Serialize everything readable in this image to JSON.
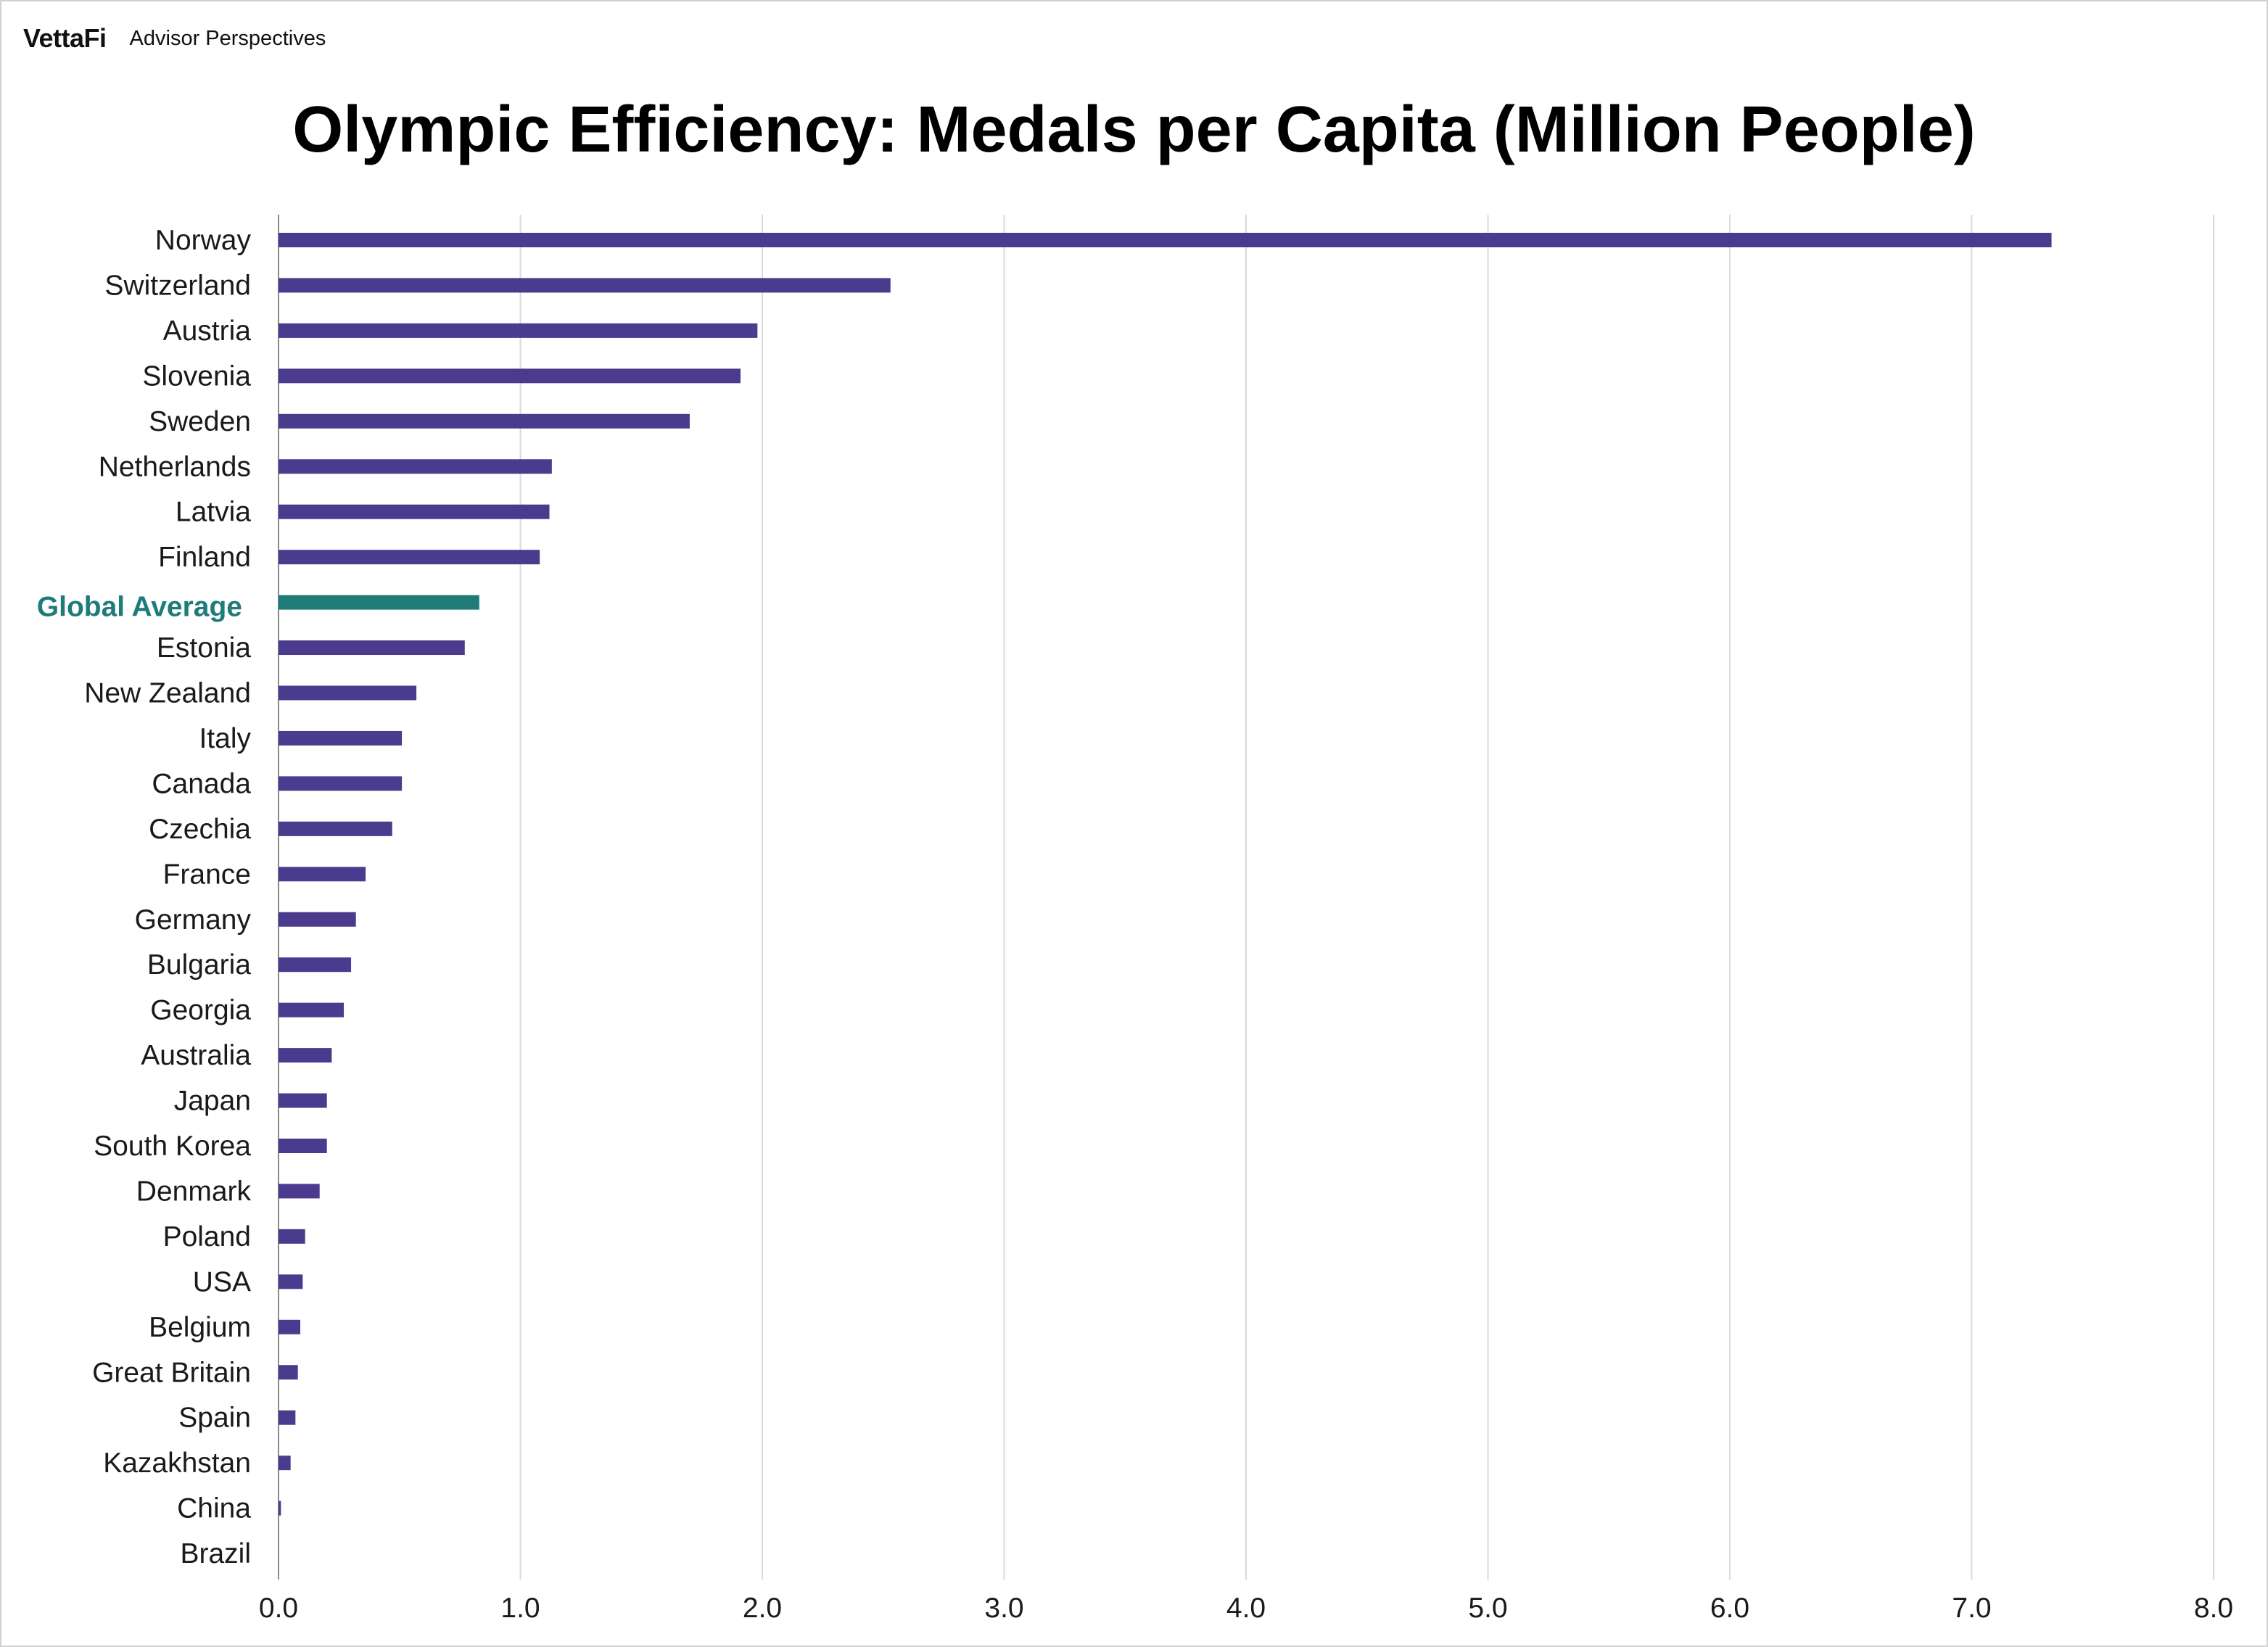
{
  "brand": {
    "logo": "VettaFi",
    "subtitle": "Advisor Perspectives"
  },
  "colors": {
    "bar": "#4b3b8f",
    "highlight": "#1e7b78",
    "grid": "#d9d9d9",
    "axis": "#8a8a8a"
  },
  "chart_data": {
    "type": "bar",
    "orientation": "horizontal",
    "title": "Olympic Efficiency: Medals per Capita (Million People)",
    "xlabel": "",
    "ylabel": "",
    "xlim": [
      0,
      8
    ],
    "xticks": [
      "0.0",
      "1.0",
      "2.0",
      "3.0",
      "4.0",
      "5.0",
      "6.0",
      "7.0",
      "8.0"
    ],
    "grid": "vertical",
    "highlight_category": "Global Average",
    "categories": [
      "Norway",
      "Switzerland",
      "Austria",
      "Slovenia",
      "Sweden",
      "Netherlands",
      "Latvia",
      "Finland",
      "Global Average",
      "Estonia",
      "New Zealand",
      "Italy",
      "Canada",
      "Czechia",
      "France",
      "Germany",
      "Bulgaria",
      "Georgia",
      "Australia",
      "Japan",
      "South Korea",
      "Denmark",
      "Poland",
      "USA",
      "Belgium",
      "Great Britain",
      "Spain",
      "Kazakhstan",
      "China",
      "Brazil"
    ],
    "values": [
      7.33,
      2.53,
      1.98,
      1.91,
      1.7,
      1.13,
      1.12,
      1.08,
      0.83,
      0.77,
      0.57,
      0.51,
      0.51,
      0.47,
      0.36,
      0.32,
      0.3,
      0.27,
      0.22,
      0.2,
      0.2,
      0.17,
      0.11,
      0.1,
      0.09,
      0.08,
      0.07,
      0.05,
      0.01,
      0.0
    ]
  }
}
